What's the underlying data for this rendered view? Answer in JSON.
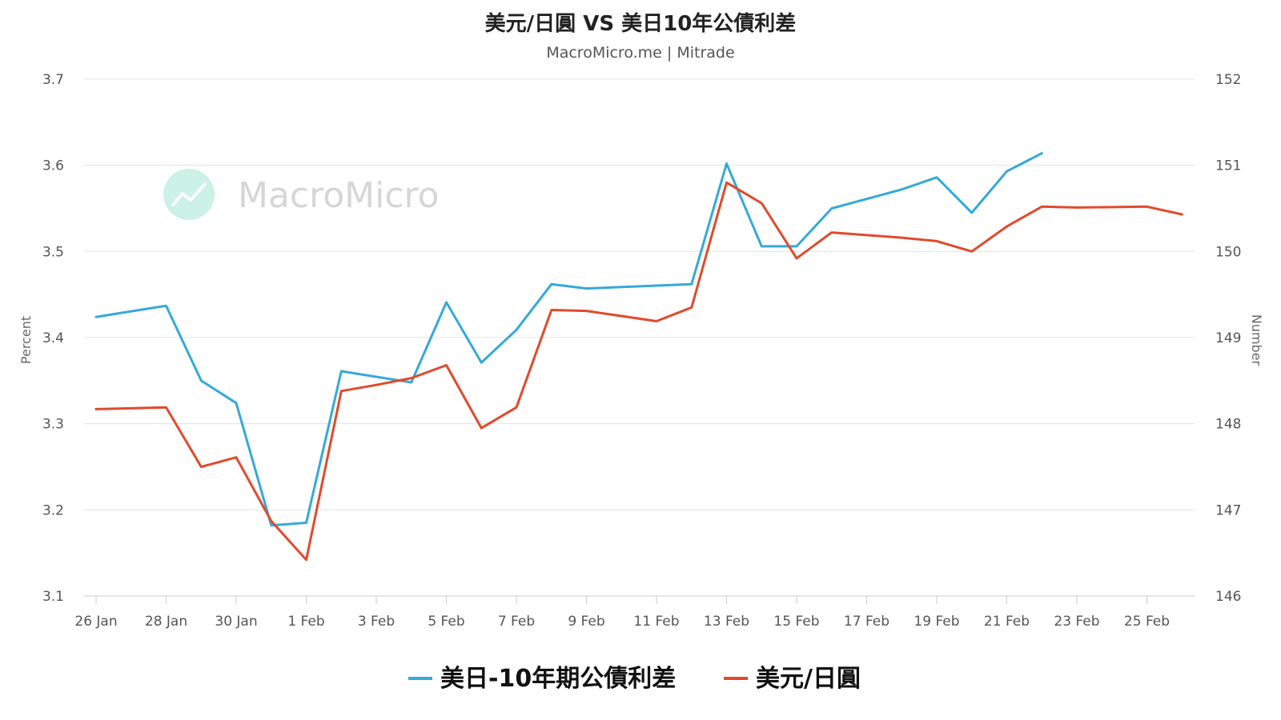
{
  "chart_data": {
    "type": "line",
    "title": "美元/日圓 VS 美日10年公債利差",
    "subtitle": "MacroMicro.me | Mitrade",
    "watermark": "MacroMicro",
    "y_left": {
      "label": "Percent",
      "ylim": [
        3.1,
        3.7
      ],
      "ticks": [
        "3.1",
        "3.2",
        "3.3",
        "3.4",
        "3.5",
        "3.6",
        "3.7"
      ]
    },
    "y_right": {
      "label": "Number",
      "ylim": [
        146,
        152
      ],
      "ticks": [
        "146",
        "147",
        "148",
        "149",
        "150",
        "151",
        "152"
      ]
    },
    "x_tick_labels": [
      "26 Jan",
      "28 Jan",
      "30 Jan",
      "1 Feb",
      "3 Feb",
      "5 Feb",
      "7 Feb",
      "9 Feb",
      "11 Feb",
      "13 Feb",
      "15 Feb",
      "17 Feb",
      "19 Feb",
      "21 Feb",
      "23 Feb",
      "25 Feb"
    ],
    "grid": true,
    "legend_position": "bottom-center",
    "series": [
      {
        "name": "美日-10年期公債利差",
        "axis": "left",
        "color": "#35a9d8",
        "points": [
          [
            "26 Jan",
            3.424
          ],
          [
            "28 Jan",
            3.437
          ],
          [
            "29 Jan",
            3.35
          ],
          [
            "30 Jan",
            3.324
          ],
          [
            "31 Jan",
            3.182
          ],
          [
            "1 Feb",
            3.185
          ],
          [
            "2 Feb",
            3.361
          ],
          [
            "4 Feb",
            3.348
          ],
          [
            "5 Feb",
            3.441
          ],
          [
            "6 Feb",
            3.371
          ],
          [
            "7 Feb",
            3.409
          ],
          [
            "8 Feb",
            3.462
          ],
          [
            "9 Feb",
            3.457
          ],
          [
            "12 Feb",
            3.462
          ],
          [
            "13 Feb",
            3.602
          ],
          [
            "14 Feb",
            3.506
          ],
          [
            "15 Feb",
            3.506
          ],
          [
            "16 Feb",
            3.55
          ],
          [
            "18 Feb",
            3.572
          ],
          [
            "19 Feb",
            3.586
          ],
          [
            "20 Feb",
            3.545
          ],
          [
            "21 Feb",
            3.593
          ],
          [
            "22 Feb",
            3.614
          ]
        ]
      },
      {
        "name": "美元/日圓",
        "axis": "right",
        "color": "#e04a2c",
        "points": [
          [
            "26 Jan",
            148.17
          ],
          [
            "28 Jan",
            148.19
          ],
          [
            "29 Jan",
            147.5
          ],
          [
            "30 Jan",
            147.61
          ],
          [
            "31 Jan",
            146.87
          ],
          [
            "1 Feb",
            146.42
          ],
          [
            "2 Feb",
            148.38
          ],
          [
            "3 Feb",
            148.45
          ],
          [
            "4 Feb",
            148.53
          ],
          [
            "5 Feb",
            148.68
          ],
          [
            "6 Feb",
            147.95
          ],
          [
            "7 Feb",
            148.19
          ],
          [
            "8 Feb",
            149.32
          ],
          [
            "9 Feb",
            149.31
          ],
          [
            "11 Feb",
            149.19
          ],
          [
            "12 Feb",
            149.35
          ],
          [
            "13 Feb",
            150.8
          ],
          [
            "14 Feb",
            150.56
          ],
          [
            "15 Feb",
            149.92
          ],
          [
            "16 Feb",
            150.22
          ],
          [
            "18 Feb",
            150.16
          ],
          [
            "19 Feb",
            150.12
          ],
          [
            "20 Feb",
            150.0
          ],
          [
            "21 Feb",
            150.29
          ],
          [
            "22 Feb",
            150.52
          ],
          [
            "23 Feb",
            150.51
          ],
          [
            "25 Feb",
            150.52
          ],
          [
            "26 Feb",
            150.43
          ]
        ]
      }
    ]
  }
}
